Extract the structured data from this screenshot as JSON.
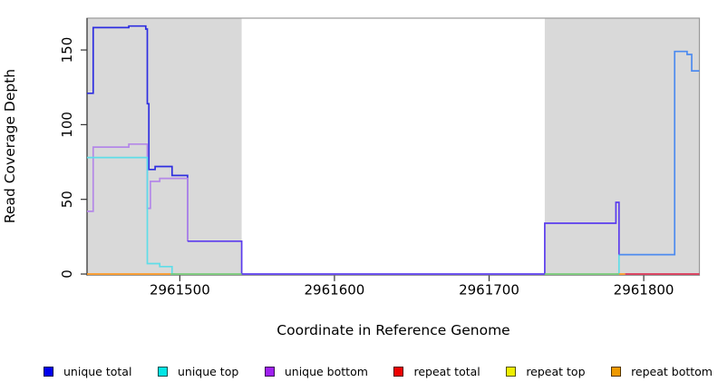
{
  "figure": {
    "xlabel": "Coordinate in Reference Genome",
    "ylabel": "Read Coverage Depth"
  },
  "legend": [
    {
      "label": "unique total",
      "color": "#0000ee"
    },
    {
      "label": "unique top",
      "color": "#00e5e5"
    },
    {
      "label": "unique bottom",
      "color": "#a020f0"
    },
    {
      "label": "repeat total",
      "color": "#ee0000"
    },
    {
      "label": "repeat top",
      "color": "#eeee00"
    },
    {
      "label": "repeat bottom",
      "color": "#ee9900"
    }
  ],
  "chart_data": {
    "type": "line",
    "title": "",
    "xlabel": "Coordinate in Reference Genome",
    "ylabel": "Read Coverage Depth",
    "xlim": [
      2961440,
      2961836
    ],
    "ylim": [
      0,
      171
    ],
    "x_ticks": [
      2961500,
      2961600,
      2961700,
      2961800
    ],
    "y_ticks": [
      0,
      50,
      100,
      150
    ],
    "grid": false,
    "legend_position": "bottom",
    "background_shade_color": "#d9d9d9",
    "shaded_regions": [
      [
        2961440,
        2961540
      ],
      [
        2961736,
        2961836
      ]
    ],
    "series": [
      {
        "name": "unique total (left block)",
        "legend": "unique total",
        "color": "#2e2ee0",
        "points": [
          [
            2961440,
            121
          ],
          [
            2961444,
            165
          ],
          [
            2961467,
            166
          ],
          [
            2961478,
            164
          ],
          [
            2961479,
            114
          ],
          [
            2961480,
            70
          ],
          [
            2961484,
            72
          ],
          [
            2961495,
            66
          ],
          [
            2961505,
            22
          ]
        ],
        "end": 2961505
      },
      {
        "name": "unique bottom (left block)",
        "legend": "unique bottom",
        "color": "#b488e8",
        "points": [
          [
            2961440,
            42
          ],
          [
            2961444,
            85
          ],
          [
            2961467,
            87
          ],
          [
            2961479,
            44
          ],
          [
            2961481,
            62
          ],
          [
            2961487,
            64
          ],
          [
            2961505,
            22
          ]
        ],
        "end": 2961505
      },
      {
        "name": "unique top (left block)",
        "legend": "unique top",
        "color": "#5fdde8",
        "points": [
          [
            2961440,
            78
          ],
          [
            2961479,
            7
          ],
          [
            2961487,
            5
          ],
          [
            2961495,
            0
          ]
        ],
        "end": 2961497
      },
      {
        "name": "unique total + unique bottom overlap (middle)",
        "legend": "unique total",
        "color": "#5b3cee",
        "points": [
          [
            2961505,
            22
          ],
          [
            2961540,
            0
          ],
          [
            2961736,
            34
          ],
          [
            2961782,
            48
          ],
          [
            2961784,
            13
          ]
        ],
        "end": 2961784
      },
      {
        "name": "unique top rise (right)",
        "legend": "unique top",
        "color": "#5fdde8",
        "points": [
          [
            2961782,
            0
          ],
          [
            2961784,
            13
          ]
        ],
        "end": 2961784
      },
      {
        "name": "unique total (right block)",
        "legend": "unique total",
        "color": "#4d8bef",
        "points": [
          [
            2961784,
            13
          ],
          [
            2961820,
            149
          ],
          [
            2961828,
            147
          ],
          [
            2961831,
            136
          ]
        ],
        "end": 2961836
      }
    ],
    "baseline_segments": [
      {
        "name": "repeat bottom baseline",
        "x": [
          2961440,
          2961494
        ],
        "y": 0,
        "color": "#ff9922"
      },
      {
        "name": "zero overlap baseline left",
        "x": [
          2961494,
          2961540
        ],
        "y": 0,
        "color": "#77cc77"
      },
      {
        "name": "zero overlap baseline right",
        "x": [
          2961736,
          2961784
        ],
        "y": 0,
        "color": "#77cc77"
      },
      {
        "name": "repeat bottom tick",
        "x": [
          2961784,
          2961788
        ],
        "y": 0,
        "color": "#ff9922"
      },
      {
        "name": "repeat total baseline",
        "x": [
          2961788,
          2961836
        ],
        "y": 0,
        "color": "#dd3355"
      }
    ]
  }
}
